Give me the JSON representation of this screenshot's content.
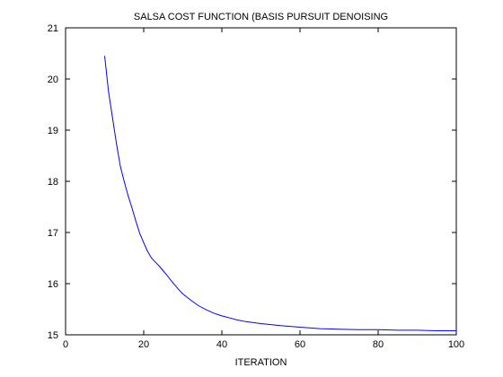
{
  "chart_data": {
    "type": "line",
    "title": "SALSA COST FUNCTION (BASIS PURSUIT DENOISING",
    "xlabel": "ITERATION",
    "ylabel": "",
    "xlim": [
      0,
      100
    ],
    "ylim": [
      15,
      21
    ],
    "xticks": [
      0,
      20,
      40,
      60,
      80,
      100
    ],
    "yticks": [
      15,
      16,
      17,
      18,
      19,
      20,
      21
    ],
    "grid": false,
    "series": [
      {
        "color": "#0000ff",
        "x": [
          10,
          11,
          12,
          13,
          14,
          15,
          16,
          17,
          18,
          19,
          20,
          21,
          22,
          23,
          24,
          25,
          26,
          27,
          28,
          29,
          30,
          32,
          34,
          36,
          38,
          40,
          42,
          44,
          46,
          48,
          50,
          55,
          60,
          65,
          70,
          75,
          80,
          85,
          90,
          95,
          100
        ],
        "y": [
          20.45,
          19.75,
          19.25,
          18.75,
          18.3,
          18.0,
          17.72,
          17.48,
          17.22,
          16.98,
          16.8,
          16.63,
          16.5,
          16.42,
          16.34,
          16.25,
          16.16,
          16.06,
          15.97,
          15.88,
          15.8,
          15.68,
          15.57,
          15.49,
          15.42,
          15.37,
          15.33,
          15.29,
          15.26,
          15.24,
          15.22,
          15.18,
          15.15,
          15.12,
          15.11,
          15.1,
          15.1,
          15.09,
          15.09,
          15.08,
          15.08
        ]
      }
    ]
  }
}
